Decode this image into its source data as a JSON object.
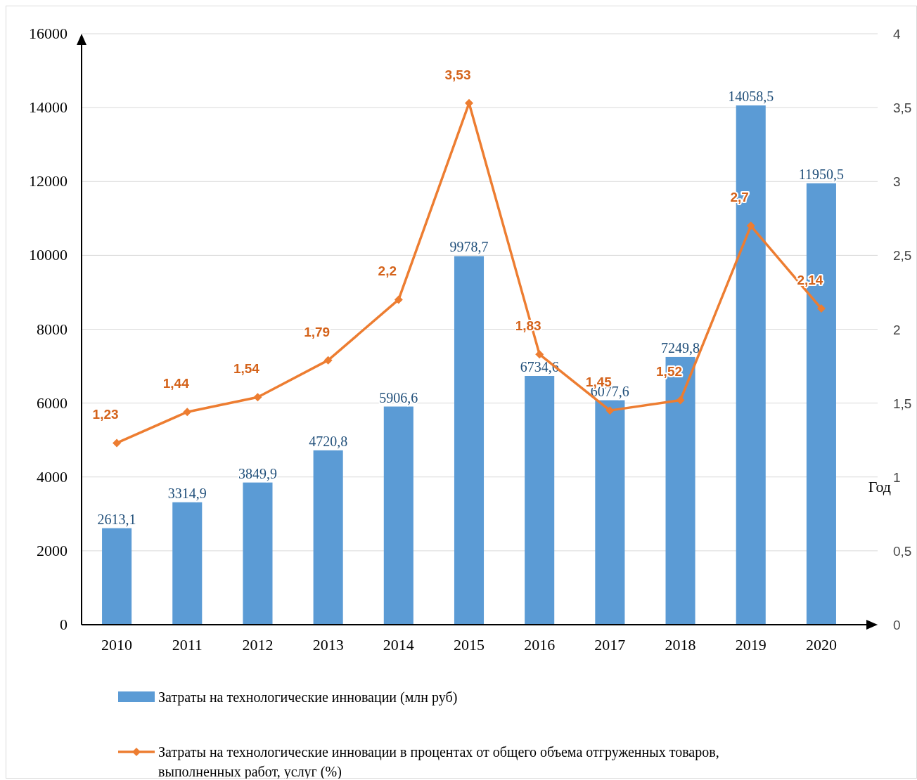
{
  "chart_data": {
    "type": "bar",
    "xlabel": "Год",
    "categories": [
      "2010",
      "2011",
      "2012",
      "2013",
      "2014",
      "2015",
      "2016",
      "2017",
      "2018",
      "2019",
      "2020"
    ],
    "series": [
      {
        "name": "Затраты на технологические инновации (млн руб)",
        "color": "#5b9bd5",
        "values": [
          2613.1,
          3314.9,
          3849.9,
          4720.8,
          5906.6,
          9978.7,
          6734.6,
          6077.6,
          7249.8,
          14058.5,
          11950.5
        ],
        "value_labels": [
          "2613,1",
          "3314,9",
          "3849,9",
          "4720,8",
          "5906,6",
          "9978,7",
          "6734,6",
          "6077,6",
          "7249,8",
          "14058,5",
          "11950,5"
        ]
      },
      {
        "name": "Затраты на технологические инновации в процентах от общего объема отгруженных товаров, выполненных работ, услуг (%)",
        "type": "line",
        "axis": "y2",
        "color": "#ed7d31",
        "values": [
          1.23,
          1.44,
          1.54,
          1.79,
          2.2,
          3.53,
          1.83,
          1.45,
          1.52,
          2.7,
          2.14
        ],
        "value_labels": [
          "1,23",
          "1,44",
          "1,54",
          "1,79",
          "2,2",
          "3,53",
          "1,83",
          "1,45",
          "1,52",
          "2,7",
          "2,14"
        ]
      }
    ],
    "ylim": [
      0,
      16000
    ],
    "yticks": [
      0,
      2000,
      4000,
      6000,
      8000,
      10000,
      12000,
      14000,
      16000
    ],
    "y2lim": [
      0,
      4
    ],
    "y2ticks": [
      0,
      {
        "value": 0.5,
        "label": "0,5"
      },
      1,
      {
        "value": 1.5,
        "label": "1,5"
      },
      2,
      {
        "value": 2.5,
        "label": "2,5"
      },
      3,
      {
        "value": 3.5,
        "label": "3,5"
      },
      4
    ],
    "grid": "y",
    "legend": "bottom",
    "marker": "diamond",
    "line_style": "solid"
  }
}
